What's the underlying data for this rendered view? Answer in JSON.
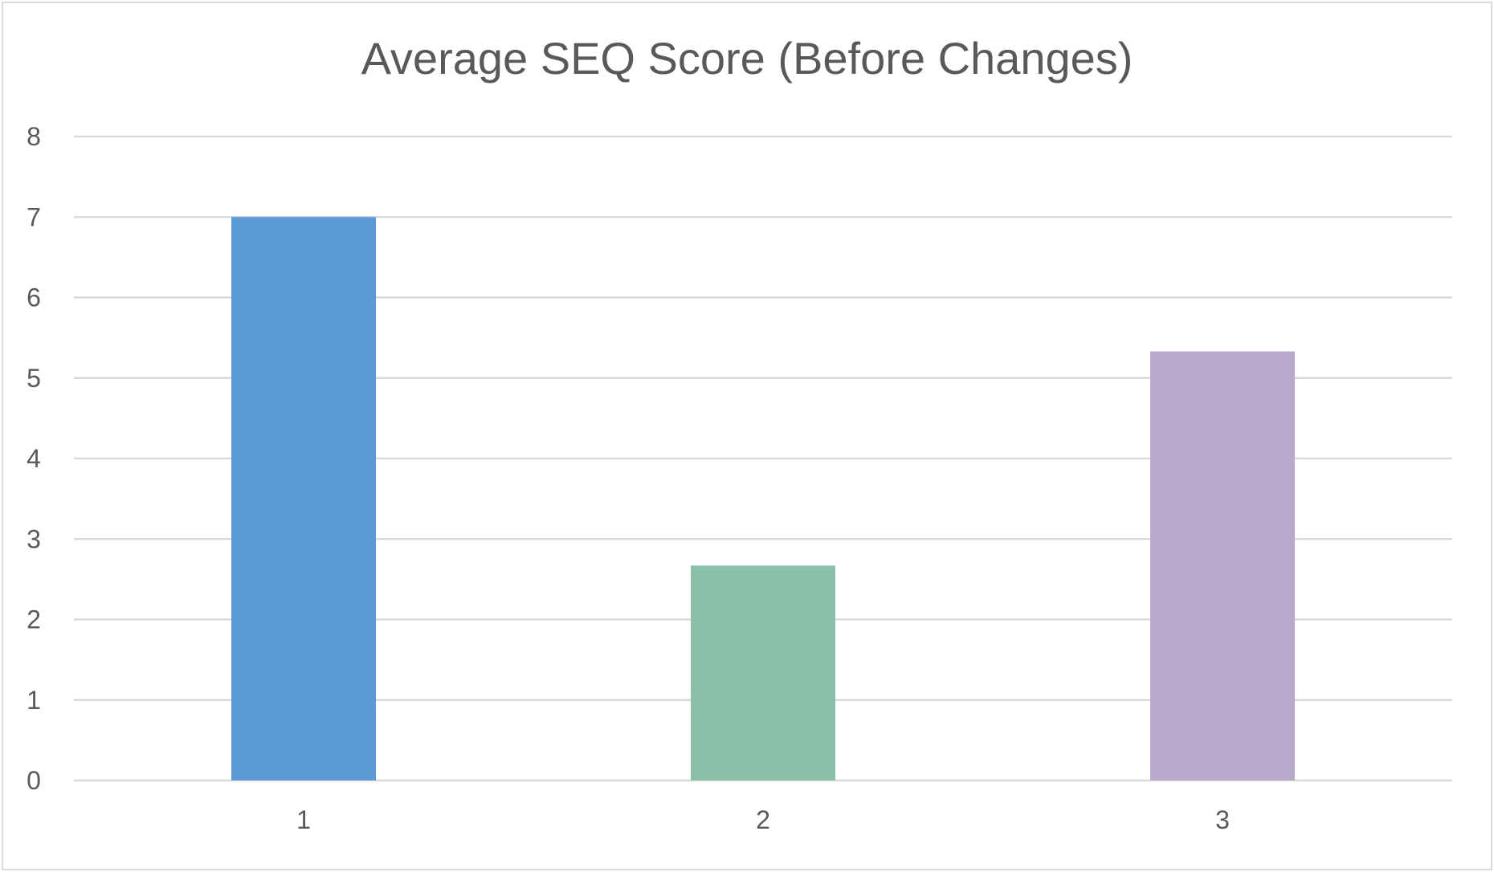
{
  "chart_data": {
    "type": "bar",
    "title": "Average SEQ Score (Before Changes)",
    "xlabel": "",
    "ylabel": "",
    "categories": [
      "1",
      "2",
      "3"
    ],
    "values": [
      7,
      2.67,
      5.33
    ],
    "bar_colors": [
      "#5b9bd5",
      "#8bc1a8",
      "#b7a9c9"
    ],
    "ylim": [
      0,
      8
    ],
    "yticks": [
      "0",
      "1",
      "2",
      "3",
      "4",
      "5",
      "6",
      "7",
      "8"
    ],
    "grid": true,
    "legend": "none"
  },
  "colors": {
    "gridline": "#d9d9d9",
    "text": "#595959"
  }
}
